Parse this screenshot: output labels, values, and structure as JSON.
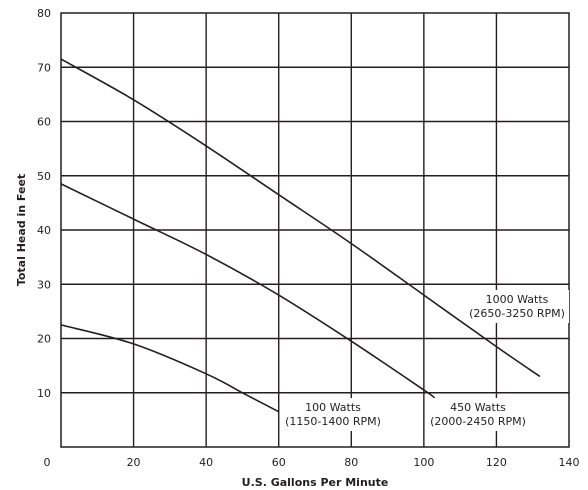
{
  "chart_data": {
    "type": "line",
    "xlabel": "U.S. Gallons Per Minute",
    "ylabel": "Total Head in Feet",
    "xlim": [
      0,
      140
    ],
    "ylim": [
      0,
      80
    ],
    "x_ticks": [
      0,
      20,
      40,
      60,
      80,
      100,
      120,
      140
    ],
    "y_ticks": [
      10,
      20,
      30,
      40,
      50,
      60,
      70,
      80
    ],
    "grid": true,
    "series": [
      {
        "name": "1000 Watts (2650-3250 RPM)",
        "label_lines": [
          "1000 Watts",
          "(2650-3250 RPM)"
        ],
        "x": [
          0,
          20,
          40,
          60,
          80,
          100,
          120,
          132
        ],
        "y": [
          71.5,
          64,
          55.5,
          46.5,
          37.5,
          28,
          18.5,
          13
        ]
      },
      {
        "name": "450 Watts (2000-2450 RPM)",
        "label_lines": [
          "450 Watts",
          "(2000-2450 RPM)"
        ],
        "x": [
          0,
          20,
          40,
          60,
          80,
          100,
          103
        ],
        "y": [
          48.5,
          42,
          35.5,
          28,
          19.5,
          10.5,
          9
        ]
      },
      {
        "name": "100 Watts (1150-1400 RPM)",
        "label_lines": [
          "100 Watts",
          "(1150-1400 RPM)"
        ],
        "x": [
          0,
          20,
          40,
          50,
          60
        ],
        "y": [
          22.5,
          19,
          13.5,
          10,
          6.5
        ]
      }
    ],
    "colors": {
      "line": "#231f20",
      "grid": "#231f20",
      "background": "#ffffff"
    }
  }
}
